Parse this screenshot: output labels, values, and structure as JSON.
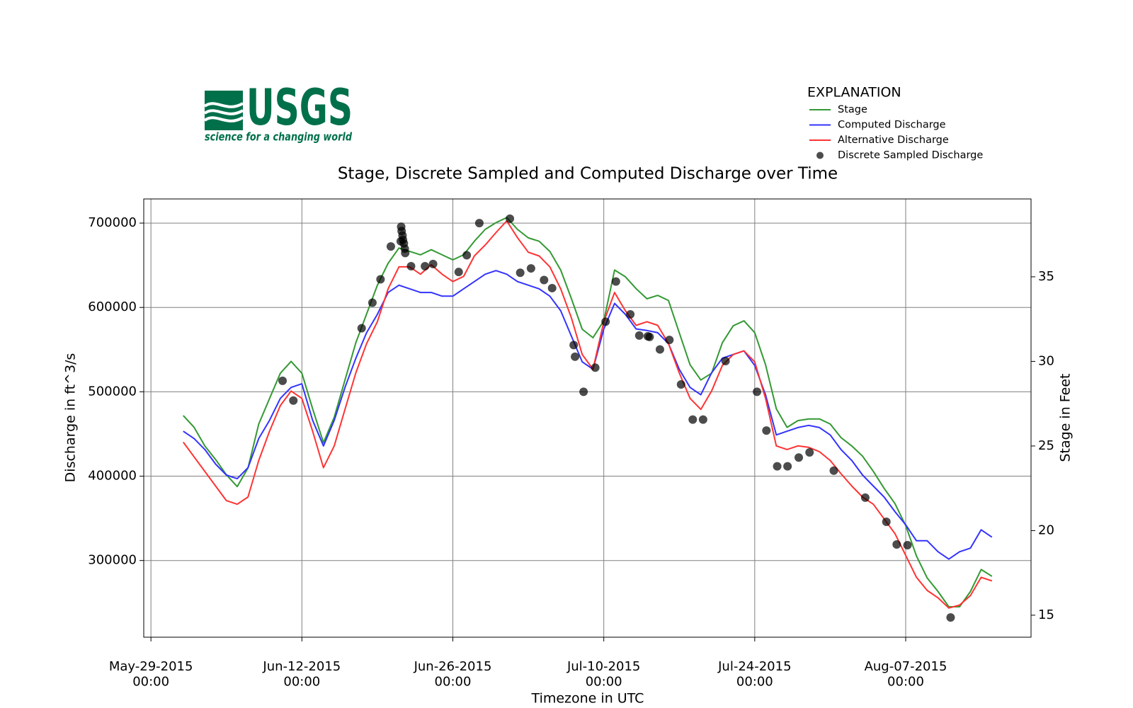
{
  "chart_data": {
    "type": "line",
    "title": "Stage, Discrete Sampled and Computed Discharge over Time",
    "logo": {
      "text": "USGS",
      "tagline": "science for a changing world"
    },
    "legend_title": "EXPLANATION",
    "legend": "upper right",
    "grid": true,
    "x_label": "Timezone in UTC",
    "y_label": "Discharge in ft^3/s",
    "y2_label": "Stage in Feet",
    "xlim": [
      "2015-05-28T08:00",
      "2015-08-18T15:00"
    ],
    "xticks": [
      {
        "value": "2015-05-29T00:00",
        "label": "May-29-2015\n00:00"
      },
      {
        "value": "2015-06-12T00:00",
        "label": "Jun-12-2015\n00:00"
      },
      {
        "value": "2015-06-26T00:00",
        "label": "Jun-26-2015\n00:00"
      },
      {
        "value": "2015-07-10T00:00",
        "label": "Jul-10-2015\n00:00"
      },
      {
        "value": "2015-07-24T00:00",
        "label": "Jul-24-2015\n00:00"
      },
      {
        "value": "2015-08-07T00:00",
        "label": "Aug-07-2015\n00:00"
      }
    ],
    "ylim": [
      209100,
      728600
    ],
    "yticks": [
      300000,
      400000,
      500000,
      600000,
      700000
    ],
    "y2lim": [
      13.7,
      39.6
    ],
    "y2ticks": [
      15,
      20,
      25,
      30,
      35
    ],
    "x": [
      "2015-06-01T00:00",
      "2015-06-02T00:00",
      "2015-06-03T00:00",
      "2015-06-04T00:00",
      "2015-06-05T00:00",
      "2015-06-06T00:00",
      "2015-06-07T00:00",
      "2015-06-08T00:00",
      "2015-06-09T00:00",
      "2015-06-10T00:00",
      "2015-06-11T00:00",
      "2015-06-12T00:00",
      "2015-06-13T00:00",
      "2015-06-14T00:00",
      "2015-06-15T00:00",
      "2015-06-16T00:00",
      "2015-06-17T00:00",
      "2015-06-18T00:00",
      "2015-06-19T00:00",
      "2015-06-20T00:00",
      "2015-06-21T00:00",
      "2015-06-22T00:00",
      "2015-06-23T00:00",
      "2015-06-24T00:00",
      "2015-06-25T00:00",
      "2015-06-26T00:00",
      "2015-06-27T00:00",
      "2015-06-28T00:00",
      "2015-06-29T00:00",
      "2015-06-30T00:00",
      "2015-07-01T00:00",
      "2015-07-02T00:00",
      "2015-07-03T00:00",
      "2015-07-04T00:00",
      "2015-07-05T00:00",
      "2015-07-06T00:00",
      "2015-07-07T00:00",
      "2015-07-08T00:00",
      "2015-07-09T00:00",
      "2015-07-10T00:00",
      "2015-07-11T00:00",
      "2015-07-12T00:00",
      "2015-07-13T00:00",
      "2015-07-14T00:00",
      "2015-07-15T00:00",
      "2015-07-16T00:00",
      "2015-07-17T00:00",
      "2015-07-18T00:00",
      "2015-07-19T00:00",
      "2015-07-20T00:00",
      "2015-07-21T00:00",
      "2015-07-22T00:00",
      "2015-07-23T00:00",
      "2015-07-24T00:00",
      "2015-07-25T00:00",
      "2015-07-26T00:00",
      "2015-07-27T00:00",
      "2015-07-28T00:00",
      "2015-07-29T00:00",
      "2015-07-30T00:00",
      "2015-07-31T00:00",
      "2015-08-01T00:00",
      "2015-08-02T00:00",
      "2015-08-03T00:00",
      "2015-08-04T00:00",
      "2015-08-05T00:00",
      "2015-08-06T00:00",
      "2015-08-07T00:00",
      "2015-08-08T00:00",
      "2015-08-09T00:00",
      "2015-08-10T00:00",
      "2015-08-11T00:00",
      "2015-08-12T00:00",
      "2015-08-13T00:00",
      "2015-08-14T00:00",
      "2015-08-15T00:00"
    ],
    "series": [
      {
        "name": "Stage",
        "color": "#339933",
        "axis": "y2",
        "values": [
          26.8,
          26.1,
          25.0,
          24.2,
          23.3,
          22.6,
          23.7,
          26.3,
          27.8,
          29.3,
          30.0,
          29.3,
          27.2,
          25.2,
          26.7,
          28.9,
          31.1,
          32.8,
          34.5,
          35.8,
          36.7,
          36.5,
          36.3,
          36.6,
          36.3,
          36.0,
          36.3,
          37.1,
          37.8,
          38.2,
          38.5,
          37.8,
          37.3,
          37.1,
          36.5,
          35.4,
          33.7,
          31.9,
          31.4,
          32.4,
          35.4,
          35.0,
          34.3,
          33.7,
          33.9,
          33.6,
          31.7,
          29.8,
          28.9,
          29.3,
          31.1,
          32.1,
          32.4,
          31.7,
          29.8,
          27.2,
          26.1,
          26.5,
          26.6,
          26.6,
          26.3,
          25.5,
          25.0,
          24.4,
          23.5,
          22.5,
          21.6,
          20.3,
          18.5,
          17.2,
          16.4,
          15.5,
          15.5,
          16.4,
          17.7,
          17.3
        ]
      },
      {
        "name": "Computed Discharge",
        "color": "#3333ff",
        "values": [
          453200,
          444600,
          431600,
          414300,
          401300,
          397000,
          410000,
          444600,
          466200,
          492200,
          505200,
          509500,
          466200,
          435900,
          466200,
          505200,
          539800,
          570100,
          591800,
          617700,
          626400,
          622100,
          617700,
          617700,
          613400,
          613400,
          622100,
          630700,
          639400,
          643700,
          639400,
          630700,
          626400,
          622100,
          613400,
          596100,
          565800,
          535500,
          526800,
          574500,
          604800,
          591800,
          574500,
          572700,
          570100,
          557100,
          526800,
          505200,
          496500,
          522500,
          539800,
          544200,
          548500,
          531200,
          496500,
          448900,
          453200,
          457600,
          460200,
          457600,
          448900,
          431600,
          418600,
          401300,
          388300,
          375300,
          358000,
          342400,
          323400,
          323400,
          310400,
          301700,
          310400,
          314700,
          336400,
          327700
        ]
      },
      {
        "name": "Alternative Discharge",
        "color": "#ff3333",
        "values": [
          440300,
          422900,
          405600,
          388300,
          371000,
          366700,
          375300,
          418600,
          453200,
          483600,
          500900,
          492200,
          453200,
          410000,
          435900,
          479200,
          522500,
          557100,
          583100,
          622100,
          648100,
          648100,
          639400,
          650600,
          639400,
          630700,
          636800,
          661000,
          674000,
          688700,
          702600,
          682700,
          665400,
          661000,
          648100,
          622100,
          587400,
          544200,
          526800,
          583100,
          617700,
          596100,
          578800,
          583100,
          578800,
          557100,
          522500,
          492200,
          479200,
          500900,
          531200,
          544200,
          548500,
          535500,
          492200,
          435900,
          431600,
          435900,
          434200,
          429000,
          418600,
          403000,
          388300,
          375300,
          366700,
          349400,
          332000,
          306100,
          280100,
          264500,
          255800,
          243700,
          247200,
          258400,
          280100,
          275800
        ]
      },
      {
        "name": "Discrete Sampled Discharge",
        "color": "#000000",
        "type": "scatter",
        "x": [
          "2015-06-10T05:00",
          "2015-06-11T05:00",
          "2015-06-17T13:00",
          "2015-06-18T13:00",
          "2015-06-19T07:00",
          "2015-06-20T06:00",
          "2015-06-21T05:00",
          "2015-06-21T06:00",
          "2015-06-21T08:00",
          "2015-06-21T09:00",
          "2015-06-21T11:00",
          "2015-06-21T13:00",
          "2015-06-21T14:00",
          "2015-06-21T04:00",
          "2015-06-22T03:00",
          "2015-06-23T10:00",
          "2015-06-24T04:00",
          "2015-06-26T13:00",
          "2015-06-27T07:00",
          "2015-06-28T11:00",
          "2015-07-01T07:00",
          "2015-07-02T06:00",
          "2015-07-03T06:00",
          "2015-07-04T11:00",
          "2015-07-05T05:00",
          "2015-07-07T05:00",
          "2015-07-07T08:00",
          "2015-07-08T03:00",
          "2015-07-09T05:00",
          "2015-07-10T04:00",
          "2015-07-11T03:00",
          "2015-07-12T11:00",
          "2015-07-13T07:00",
          "2015-07-14T02:00",
          "2015-07-14T06:00",
          "2015-07-15T05:00",
          "2015-07-16T02:00",
          "2015-07-17T04:00",
          "2015-07-18T06:00",
          "2015-07-19T05:00",
          "2015-07-21T07:00",
          "2015-07-24T05:00",
          "2015-07-25T02:00",
          "2015-07-26T02:00",
          "2015-07-27T01:00",
          "2015-07-28T02:00",
          "2015-07-29T02:00",
          "2015-07-31T08:00",
          "2015-08-03T06:00",
          "2015-08-05T05:00",
          "2015-08-06T04:00",
          "2015-08-07T04:00",
          "2015-08-11T04:00"
        ],
        "values": [
          513000,
          489600,
          575300,
          605600,
          633300,
          672300,
          695700,
          690500,
          685300,
          680100,
          675800,
          669700,
          664500,
          678400,
          648900,
          648900,
          651500,
          642000,
          661900,
          700000,
          705200,
          641100,
          646300,
          632500,
          622900,
          555400,
          541600,
          500000,
          528600,
          583100,
          630700,
          591800,
          566700,
          565800,
          565000,
          550200,
          561500,
          508700,
          467100,
          467100,
          536400,
          500000,
          454100,
          411700,
          411700,
          422100,
          428100,
          406500,
          374500,
          345900,
          319000,
          318200,
          232500
        ]
      }
    ]
  }
}
